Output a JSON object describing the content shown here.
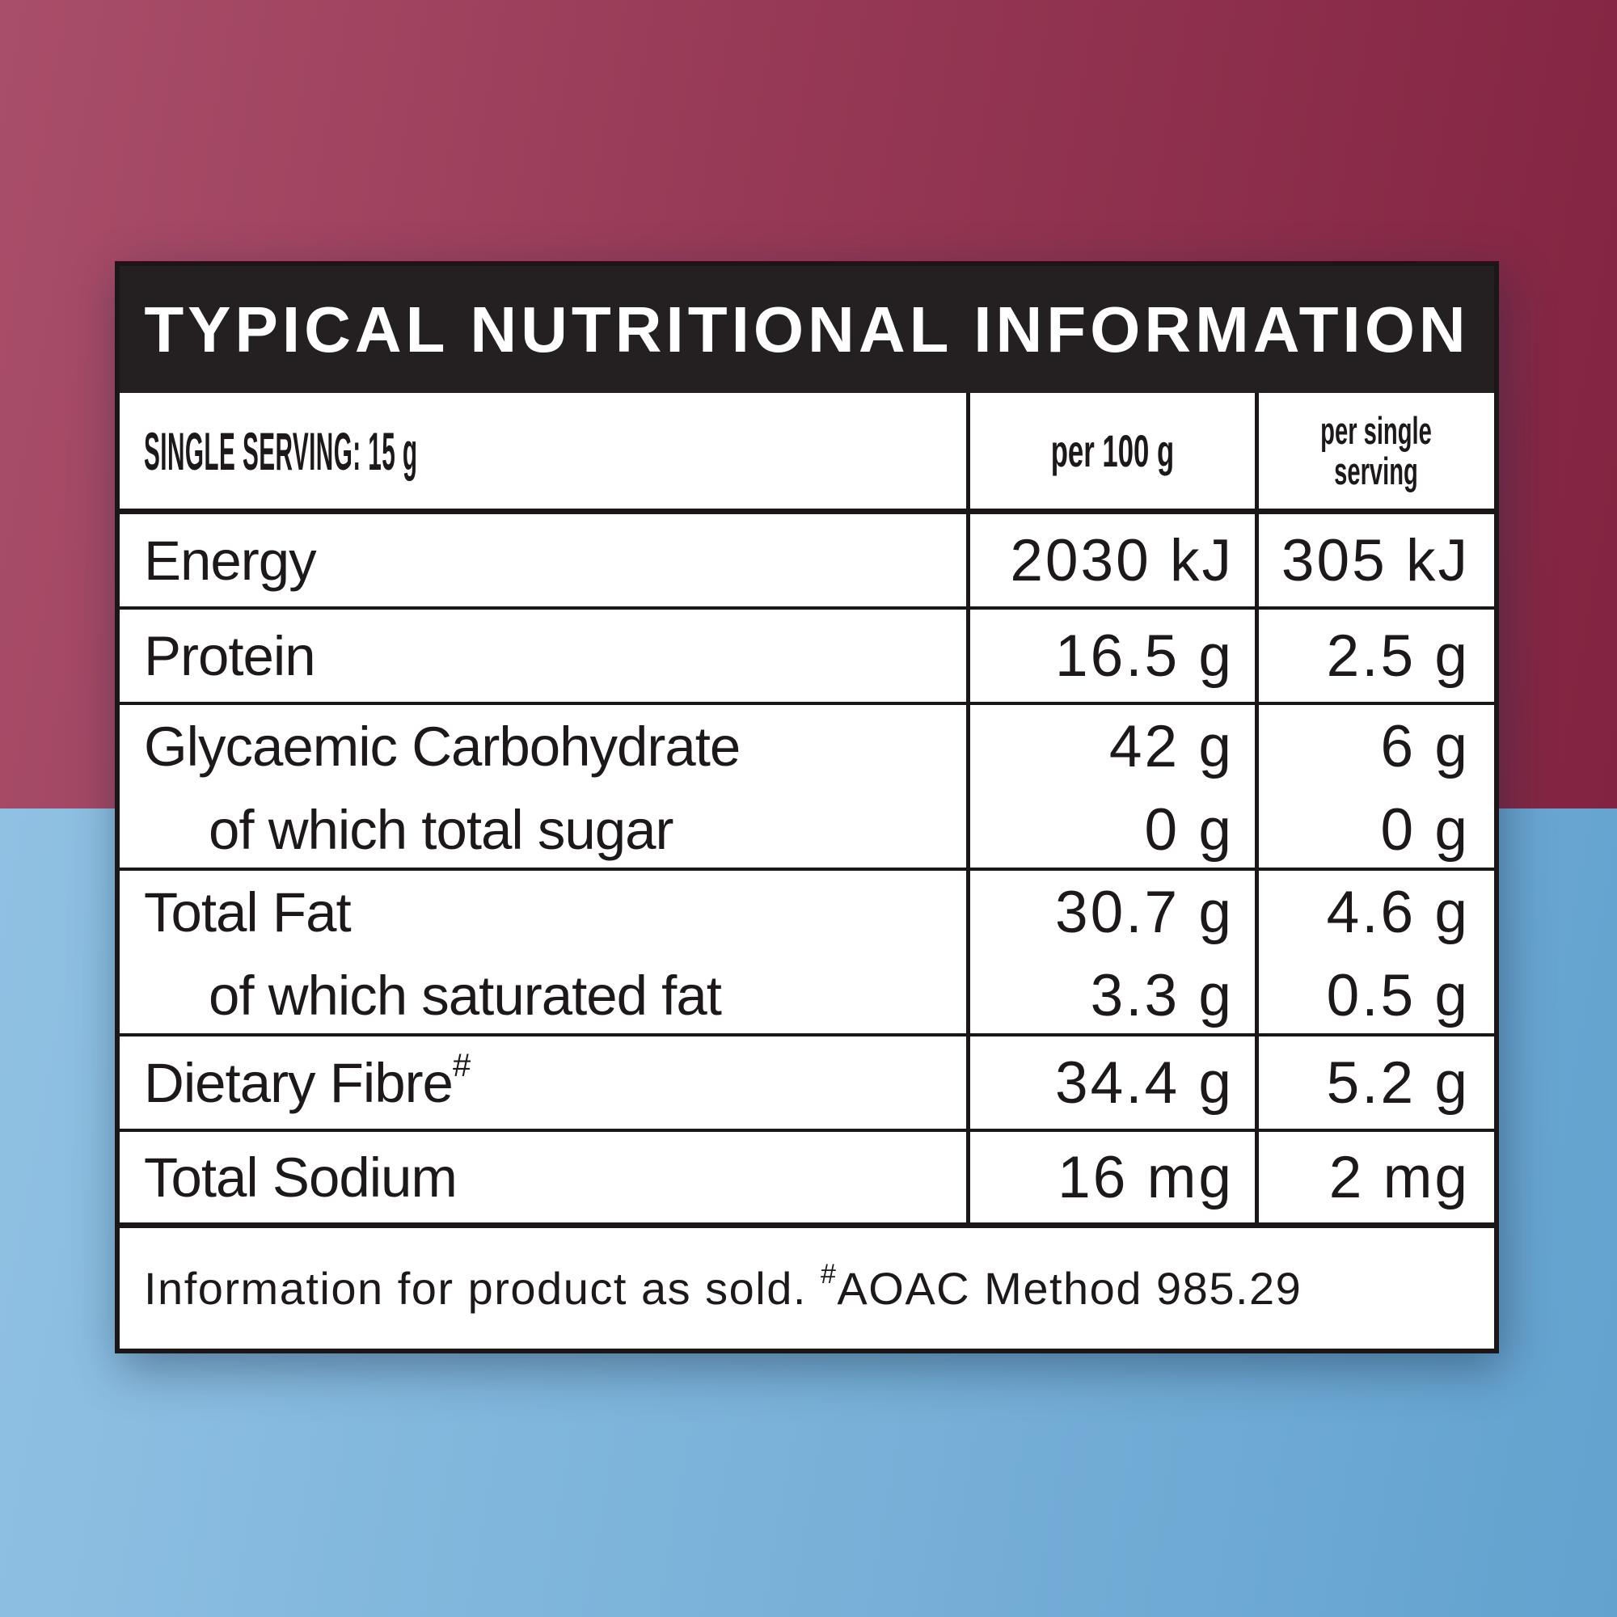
{
  "colors": {
    "background_top_left": "#a94e6a",
    "background_top_right": "#822441",
    "background_bottom_left": "#90c1e3",
    "background_bottom_right": "#63a2cf",
    "title_bar": "#241f20",
    "panel_background": "#ffffff",
    "grid_lines": "#1b1718",
    "text": "#1d191a"
  },
  "panel": {
    "title": "TYPICAL NUTRITIONAL INFORMATION",
    "header": {
      "serving_size_label": "SINGLE SERVING: 15 g",
      "col_per_100g": "per 100 g",
      "col_per_serving_line1": "per single",
      "col_per_serving_line2": "serving"
    },
    "rows": [
      {
        "label": "Energy",
        "per100": "2030 kJ",
        "serving": "305 kJ"
      },
      {
        "label": "Protein",
        "per100": "16.5 g",
        "serving": "2.5 g"
      },
      {
        "label": "Glycaemic Carbohydrate",
        "sublabel": "of which total sugar",
        "per100": "42 g",
        "per100_sub": "0 g",
        "serving": "6 g",
        "serving_sub": "0 g"
      },
      {
        "label": "Total Fat",
        "sublabel": "of which saturated fat",
        "per100": "30.7 g",
        "per100_sub": "3.3 g",
        "serving": "4.6 g",
        "serving_sub": "0.5 g"
      },
      {
        "label": "Dietary Fibre",
        "label_sup": "#",
        "per100": "34.4 g",
        "serving": "5.2 g"
      },
      {
        "label": "Total Sodium",
        "per100": "16 mg",
        "serving": "2 mg"
      }
    ],
    "footer": {
      "text_before": "Information for product as sold. ",
      "sup": "#",
      "text_after": "AOAC Method 985.29"
    }
  }
}
